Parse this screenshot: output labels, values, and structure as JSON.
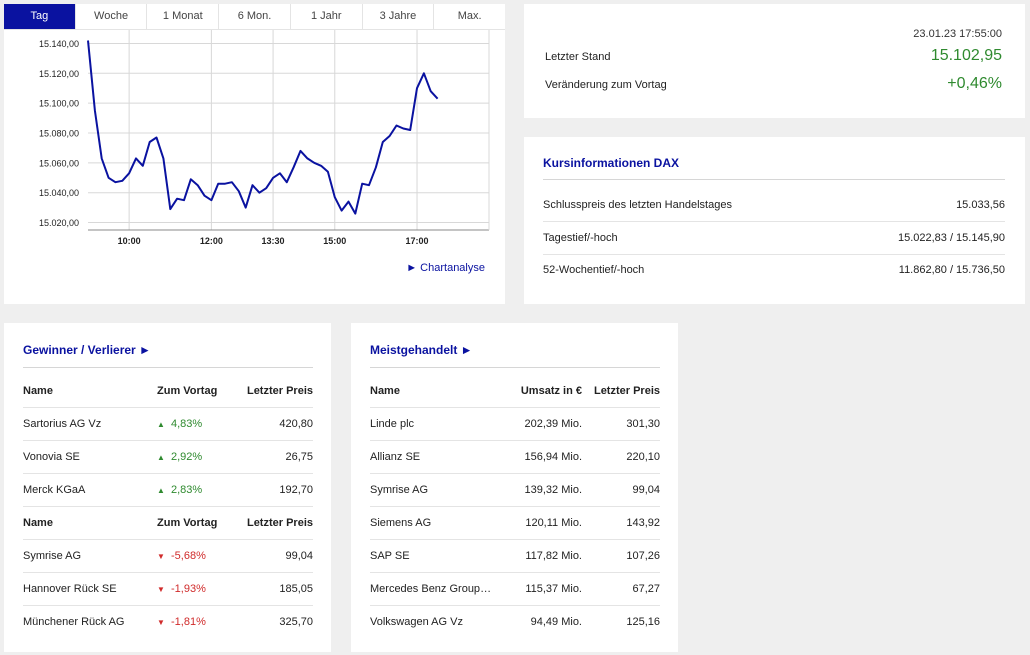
{
  "chart": {
    "tabs": [
      "Tag",
      "Woche",
      "1 Monat",
      "6 Mon.",
      "1 Jahr",
      "3 Jahre",
      "Max."
    ],
    "active_tab": "Tag",
    "link": "► Chartanalyse",
    "line_color": "#0a12a0"
  },
  "chart_data": {
    "type": "line",
    "xlabel": "",
    "ylabel": "",
    "x_tick_labels": [
      "10:00",
      "12:00",
      "13:30",
      "15:00",
      "17:00"
    ],
    "y_tick_labels": [
      "15.140,00",
      "15.120,00",
      "15.100,00",
      "15.080,00",
      "15.060,00",
      "15.040,00",
      "15.020,00"
    ],
    "ylim": [
      15015,
      15145
    ],
    "grid": true,
    "series": [
      {
        "values": [
          [
            "09:00",
            15142
          ],
          [
            "09:10",
            15095
          ],
          [
            "09:20",
            15063
          ],
          [
            "09:30",
            15050
          ],
          [
            "09:40",
            15047
          ],
          [
            "09:50",
            15048
          ],
          [
            "10:00",
            15053
          ],
          [
            "10:10",
            15063
          ],
          [
            "10:20",
            15058
          ],
          [
            "10:30",
            15074
          ],
          [
            "10:40",
            15077
          ],
          [
            "10:50",
            15063
          ],
          [
            "11:00",
            15029
          ],
          [
            "11:10",
            15036
          ],
          [
            "11:20",
            15035
          ],
          [
            "11:30",
            15049
          ],
          [
            "11:40",
            15045
          ],
          [
            "11:50",
            15038
          ],
          [
            "12:00",
            15035
          ],
          [
            "12:10",
            15046
          ],
          [
            "12:20",
            15046
          ],
          [
            "12:30",
            15047
          ],
          [
            "12:40",
            15041
          ],
          [
            "12:50",
            15030
          ],
          [
            "13:00",
            15045
          ],
          [
            "13:10",
            15040
          ],
          [
            "13:20",
            15043
          ],
          [
            "13:30",
            15050
          ],
          [
            "13:40",
            15053
          ],
          [
            "13:50",
            15047
          ],
          [
            "14:00",
            15057
          ],
          [
            "14:10",
            15068
          ],
          [
            "14:20",
            15063
          ],
          [
            "14:30",
            15060
          ],
          [
            "14:40",
            15058
          ],
          [
            "14:50",
            15054
          ],
          [
            "15:00",
            15037
          ],
          [
            "15:10",
            15028
          ],
          [
            "15:20",
            15034
          ],
          [
            "15:30",
            15026
          ],
          [
            "15:40",
            15046
          ],
          [
            "15:50",
            15045
          ],
          [
            "16:00",
            15057
          ],
          [
            "16:10",
            15074
          ],
          [
            "16:20",
            15078
          ],
          [
            "16:30",
            15085
          ],
          [
            "16:40",
            15083
          ],
          [
            "16:50",
            15082
          ],
          [
            "17:00",
            15110
          ],
          [
            "17:10",
            15120
          ],
          [
            "17:20",
            15108
          ],
          [
            "17:30",
            15103
          ]
        ]
      }
    ]
  },
  "summary": {
    "date": "23.01.23 17:55:00",
    "rows": [
      {
        "label": "Letzter Stand",
        "value": "15.102,95"
      },
      {
        "label": "Veränderung zum Vortag",
        "value": "+0,46%"
      }
    ],
    "value_color": "#2f8a2f"
  },
  "kurs": {
    "title": "Kursinformationen DAX",
    "rows": [
      {
        "label": "Schlusspreis des letzten Handelstages",
        "value": "15.033,56"
      },
      {
        "label": "Tagestief/-hoch",
        "value": "15.022,83 / 15.145,90"
      },
      {
        "label": "52-Wochentief/-hoch",
        "value": "11.862,80 / 15.736,50"
      }
    ]
  },
  "gewinner": {
    "title": "Gewinner / Verlierer ►",
    "headers": [
      "Name",
      "Zum Vortag",
      "Letzter Preis"
    ],
    "winners": [
      {
        "name": "Sartorius AG Vz",
        "change": "4,83%",
        "price": "420,80"
      },
      {
        "name": "Vonovia SE",
        "change": "2,92%",
        "price": "26,75"
      },
      {
        "name": "Merck KGaA",
        "change": "2,83%",
        "price": "192,70"
      }
    ],
    "losers": [
      {
        "name": "Symrise AG",
        "change": "-5,68%",
        "price": "99,04"
      },
      {
        "name": "Hannover Rück SE",
        "change": "-1,93%",
        "price": "185,05"
      },
      {
        "name": "Münchener Rück AG",
        "change": "-1,81%",
        "price": "325,70"
      }
    ],
    "up_symbol": "▲",
    "down_symbol": "▼",
    "up_color": "#2f8a2f",
    "down_color": "#d02b2b"
  },
  "meist": {
    "title": "Meistgehandelt ►",
    "headers": [
      "Name",
      "Umsatz in €",
      "Letzter Preis"
    ],
    "rows": [
      {
        "name": "Linde plc",
        "umsatz": "202,39 Mio.",
        "price": "301,30"
      },
      {
        "name": "Allianz SE",
        "umsatz": "156,94 Mio.",
        "price": "220,10"
      },
      {
        "name": "Symrise AG",
        "umsatz": "139,32 Mio.",
        "price": "99,04"
      },
      {
        "name": "Siemens AG",
        "umsatz": "120,11 Mio.",
        "price": "143,92"
      },
      {
        "name": "SAP SE",
        "umsatz": "117,82 Mio.",
        "price": "107,26"
      },
      {
        "name": "Mercedes Benz Group AG...",
        "umsatz": "115,37 Mio.",
        "price": "67,27"
      },
      {
        "name": "Volkswagen AG Vz",
        "umsatz": "94,49 Mio.",
        "price": "125,16"
      }
    ]
  }
}
